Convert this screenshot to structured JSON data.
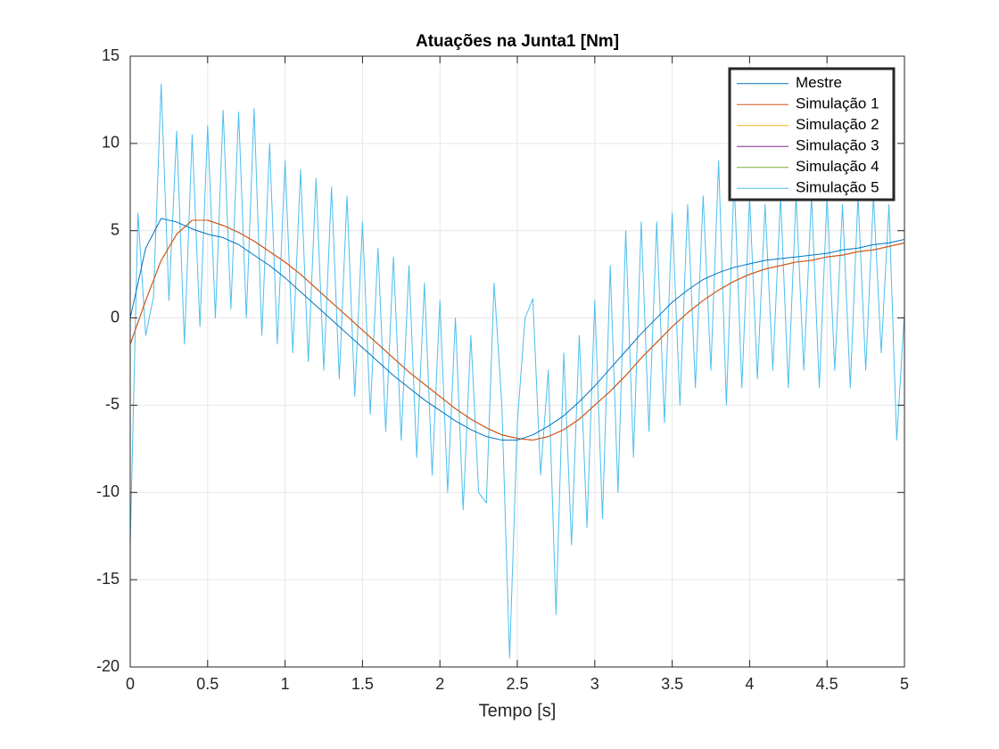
{
  "chart_data": {
    "type": "line",
    "title": "Atuações na Junta1 [Nm]",
    "xlabel": "Tempo [s]",
    "x": [
      0,
      0.1,
      0.2,
      0.3,
      0.4,
      0.5,
      0.6,
      0.7,
      0.8,
      0.9,
      1,
      1.1,
      1.2,
      1.3,
      1.4,
      1.5,
      1.6,
      1.7,
      1.8,
      1.9,
      2,
      2.1,
      2.2,
      2.3,
      2.4,
      2.5,
      2.6,
      2.7,
      2.8,
      2.9,
      3,
      3.1,
      3.2,
      3.3,
      3.4,
      3.5,
      3.6,
      3.7,
      3.8,
      3.9,
      4,
      4.1,
      4.2,
      4.3,
      4.4,
      4.5,
      4.6,
      4.7,
      4.8,
      4.9,
      5
    ],
    "xlim": [
      0,
      5
    ],
    "xticks": [
      0,
      0.5,
      1,
      1.5,
      2,
      2.5,
      3,
      3.5,
      4,
      4.5,
      5
    ],
    "ylim": [
      -20,
      15
    ],
    "yticks": [
      -20,
      -15,
      -10,
      -5,
      0,
      5,
      10,
      15
    ],
    "grid": true,
    "legend": "northeast",
    "series": [
      {
        "name": "Mestre",
        "color": "#0072BD",
        "values": [
          0,
          4.0,
          5.7,
          5.5,
          5.1,
          4.8,
          4.6,
          4.2,
          3.6,
          3.0,
          2.3,
          1.5,
          0.7,
          -0.1,
          -0.9,
          -1.7,
          -2.5,
          -3.3,
          -4.0,
          -4.7,
          -5.3,
          -5.9,
          -6.4,
          -6.8,
          -7.0,
          -7.0,
          -6.7,
          -6.2,
          -5.6,
          -4.8,
          -3.9,
          -2.9,
          -1.9,
          -0.9,
          0.0,
          0.9,
          1.6,
          2.2,
          2.6,
          2.9,
          3.1,
          3.3,
          3.4,
          3.5,
          3.6,
          3.7,
          3.9,
          4.0,
          4.2,
          4.3,
          4.5
        ]
      },
      {
        "name": "Simulação 1",
        "color": "#D95319",
        "values": [
          -1.5,
          1.0,
          3.3,
          4.8,
          5.6,
          5.6,
          5.3,
          4.9,
          4.4,
          3.8,
          3.2,
          2.5,
          1.7,
          0.9,
          0.1,
          -0.7,
          -1.5,
          -2.3,
          -3.1,
          -3.8,
          -4.5,
          -5.2,
          -5.8,
          -6.3,
          -6.7,
          -6.9,
          -7.0,
          -6.8,
          -6.4,
          -5.8,
          -5.0,
          -4.2,
          -3.3,
          -2.3,
          -1.4,
          -0.5,
          0.3,
          1.0,
          1.6,
          2.1,
          2.5,
          2.8,
          3.0,
          3.2,
          3.3,
          3.5,
          3.6,
          3.8,
          3.9,
          4.1,
          4.3
        ]
      },
      {
        "name": "Simulação 2",
        "color": "#EDB120",
        "values": [
          -1.5,
          1.0,
          3.3,
          4.8,
          5.6,
          5.6,
          5.3,
          4.9,
          4.4,
          3.8,
          3.2,
          2.5,
          1.7,
          0.9,
          0.1,
          -0.7,
          -1.5,
          -2.3,
          -3.1,
          -3.8,
          -4.5,
          -5.2,
          -5.8,
          -6.3,
          -6.7,
          -6.9,
          -7.0,
          -6.8,
          -6.4,
          -5.8,
          -5.0,
          -4.2,
          -3.3,
          -2.3,
          -1.4,
          -0.5,
          0.3,
          1.0,
          1.6,
          2.1,
          2.5,
          2.8,
          3.0,
          3.2,
          3.3,
          3.5,
          3.6,
          3.8,
          3.9,
          4.1,
          4.3
        ]
      },
      {
        "name": "Simulação 3",
        "color": "#7E2F8E",
        "values": [
          -1.5,
          1.0,
          3.3,
          4.8,
          5.6,
          5.6,
          5.3,
          4.9,
          4.4,
          3.8,
          3.2,
          2.5,
          1.7,
          0.9,
          0.1,
          -0.7,
          -1.5,
          -2.3,
          -3.1,
          -3.8,
          -4.5,
          -5.2,
          -5.8,
          -6.3,
          -6.7,
          -6.9,
          -7.0,
          -6.8,
          -6.4,
          -5.8,
          -5.0,
          -4.2,
          -3.3,
          -2.3,
          -1.4,
          -0.5,
          0.3,
          1.0,
          1.6,
          2.1,
          2.5,
          2.8,
          3.0,
          3.2,
          3.3,
          3.5,
          3.6,
          3.8,
          3.9,
          4.1,
          4.3
        ]
      },
      {
        "name": "Simulação 4",
        "color": "#77AC30",
        "values": [
          -1.5,
          1.0,
          3.3,
          4.8,
          5.6,
          5.6,
          5.3,
          4.9,
          4.4,
          3.8,
          3.2,
          2.5,
          1.7,
          0.9,
          0.1,
          -0.7,
          -1.5,
          -2.3,
          -3.1,
          -3.8,
          -4.5,
          -5.2,
          -5.8,
          -6.3,
          -6.7,
          -6.9,
          -7.0,
          -6.8,
          -6.4,
          -5.8,
          -5.0,
          -4.2,
          -3.3,
          -2.3,
          -1.4,
          -0.5,
          0.3,
          1.0,
          1.6,
          2.1,
          2.5,
          2.8,
          3.0,
          3.2,
          3.3,
          3.5,
          3.6,
          3.8,
          3.9,
          4.1,
          4.3
        ]
      },
      {
        "name": "Simulação 5",
        "color": "#4DBEEE",
        "x": [
          0,
          0.05,
          0.1,
          0.15,
          0.2,
          0.25,
          0.3,
          0.35,
          0.4,
          0.45,
          0.5,
          0.55,
          0.6,
          0.65,
          0.7,
          0.75,
          0.8,
          0.85,
          0.9,
          0.95,
          1,
          1.05,
          1.1,
          1.15,
          1.2,
          1.25,
          1.3,
          1.35,
          1.4,
          1.45,
          1.5,
          1.55,
          1.6,
          1.65,
          1.7,
          1.75,
          1.8,
          1.85,
          1.9,
          1.95,
          2,
          2.05,
          2.1,
          2.15,
          2.2,
          2.25,
          2.3,
          2.35,
          2.4,
          2.45,
          2.5,
          2.55,
          2.6,
          2.65,
          2.7,
          2.75,
          2.8,
          2.85,
          2.9,
          2.95,
          3,
          3.05,
          3.1,
          3.15,
          3.2,
          3.25,
          3.3,
          3.35,
          3.4,
          3.45,
          3.5,
          3.55,
          3.6,
          3.65,
          3.7,
          3.75,
          3.8,
          3.85,
          3.9,
          3.95,
          4,
          4.05,
          4.1,
          4.15,
          4.2,
          4.25,
          4.3,
          4.35,
          4.4,
          4.45,
          4.5,
          4.55,
          4.6,
          4.65,
          4.7,
          4.75,
          4.8,
          4.85,
          4.9,
          4.95,
          5
        ],
        "values": [
          -13,
          6,
          -1,
          1.2,
          13.4,
          1,
          10.7,
          -1.5,
          10.5,
          -0.5,
          11,
          0,
          11.9,
          0.5,
          11.8,
          0,
          12,
          -1,
          10,
          -1.5,
          9,
          -2,
          8.5,
          -2.5,
          8,
          -3,
          7.5,
          -3.5,
          7,
          -4.5,
          5.5,
          -5.5,
          4,
          -6.5,
          3.5,
          -7,
          3,
          -8,
          2,
          -9,
          1,
          -10,
          0,
          -11,
          -1,
          -10,
          -10.6,
          2,
          -5,
          -19.5,
          -6,
          0,
          1.1,
          -9,
          -3,
          -17,
          -2,
          -13,
          -1,
          -12,
          1,
          -11.5,
          3,
          -10,
          5,
          -8,
          5.5,
          -6.5,
          5.5,
          -6,
          6,
          -5,
          6.5,
          -4,
          7,
          -3,
          9,
          -5,
          8,
          -4,
          7,
          -3.5,
          6.5,
          -3,
          7,
          -4,
          7,
          -3,
          7,
          -4,
          7,
          -3,
          6.5,
          -4,
          7,
          -3,
          7,
          -2,
          6.5,
          -7,
          0.3
        ]
      }
    ]
  }
}
